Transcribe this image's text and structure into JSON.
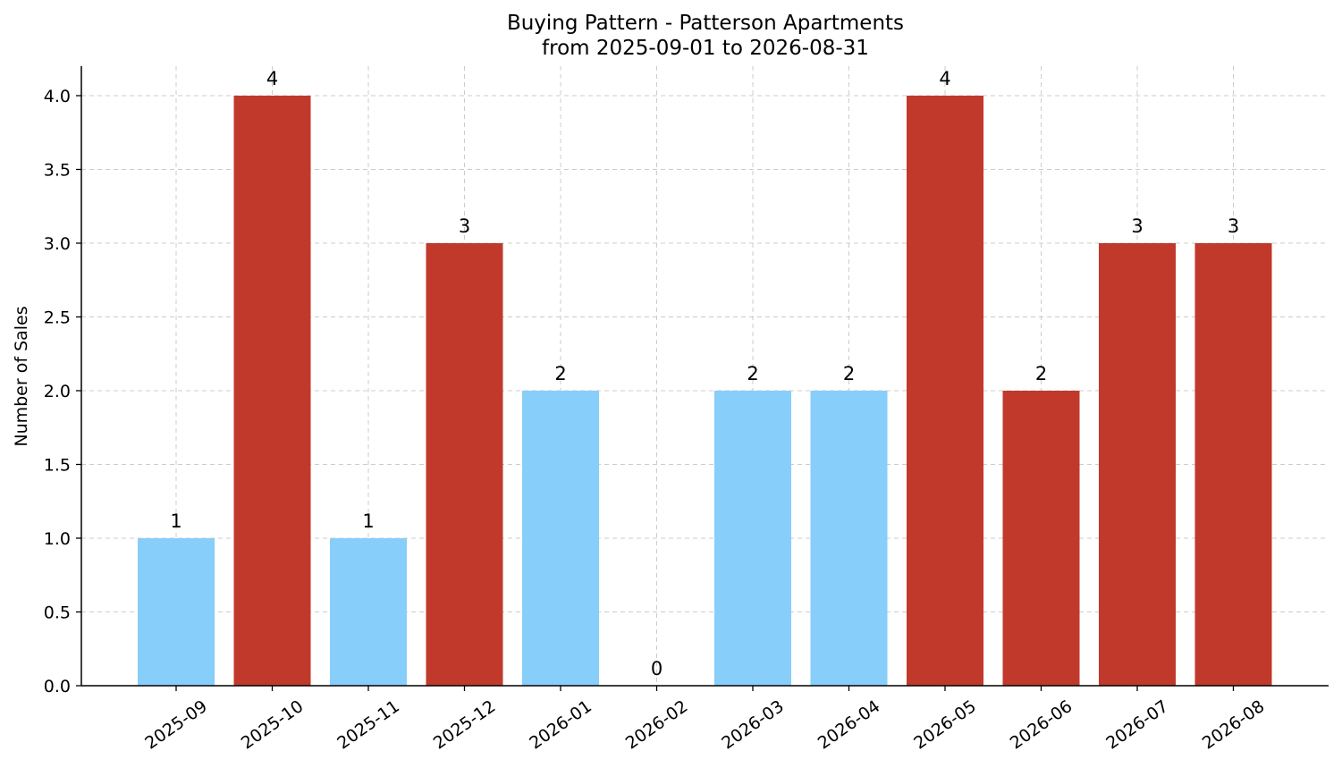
{
  "chart_data": {
    "type": "bar",
    "title": "Buying Pattern - Patterson Apartments",
    "subtitle": "from 2025-09-01 to 2026-08-31",
    "xlabel": "",
    "ylabel": "Number of Sales",
    "ylim": [
      0,
      4.2
    ],
    "yticks": [
      "0.0",
      "0.5",
      "1.0",
      "1.5",
      "2.0",
      "2.5",
      "3.0",
      "3.5",
      "4.0"
    ],
    "grid": true,
    "categories": [
      "2025-09",
      "2025-10",
      "2025-11",
      "2025-12",
      "2026-01",
      "2026-02",
      "2026-03",
      "2026-04",
      "2026-05",
      "2026-06",
      "2026-07",
      "2026-08"
    ],
    "values": [
      1,
      4,
      1,
      3,
      2,
      0,
      2,
      2,
      4,
      2,
      3,
      3
    ],
    "data_labels": [
      "1",
      "4",
      "1",
      "3",
      "2",
      "0",
      "2",
      "2",
      "4",
      "2",
      "3",
      "3"
    ],
    "bar_colors": [
      "#87cefa",
      "#c0392b",
      "#87cefa",
      "#c0392b",
      "#87cefa",
      "#87cefa",
      "#87cefa",
      "#87cefa",
      "#c0392b",
      "#c0392b",
      "#c0392b",
      "#c0392b"
    ]
  }
}
